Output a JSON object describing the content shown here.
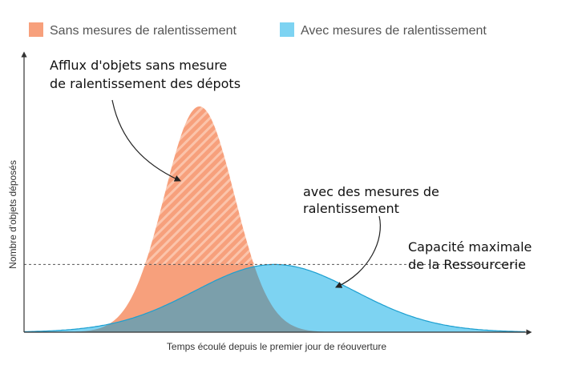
{
  "chart_data": {
    "type": "area",
    "title": "",
    "xlabel": "Temps écoulé depuis le premier jour de réouverture",
    "ylabel": "Nombre d'objets déposés",
    "legend_position": "top-left",
    "grid": false,
    "series": [
      {
        "name": "Sans mesures de ralentissement",
        "color": "#f7a07c",
        "peak_x": 0.35,
        "peak_y": 1.0,
        "spread": 0.07
      },
      {
        "name": "Avec mesures de ralentissement",
        "color": "#7dd3f2",
        "peak_x": 0.5,
        "peak_y": 0.3,
        "spread": 0.16
      }
    ],
    "overlap_color": "#7b9fab",
    "capacity": {
      "value": 0.3,
      "label": [
        "Capacité maximale",
        "de la Ressourcerie"
      ]
    },
    "annotations": [
      {
        "lines": [
          "Afflux d'objets sans mesure",
          "de ralentissement des dépots"
        ]
      },
      {
        "lines": [
          "avec des mesures de",
          "ralentissement"
        ]
      }
    ]
  }
}
